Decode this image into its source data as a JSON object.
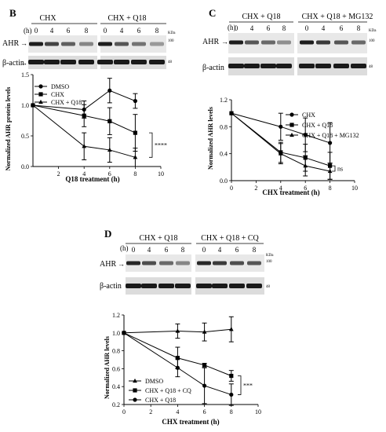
{
  "panels": [
    {
      "id": "B",
      "letter": "B",
      "blot": {
        "groups": [
          "CHX",
          "CHX + Q18"
        ],
        "h_label": "(h)",
        "time_labels": [
          "0",
          "4",
          "6",
          "8"
        ],
        "kda_label": "KDa",
        "markers": [
          "100",
          "48"
        ],
        "bands": [
          "AHR",
          "β-actin"
        ],
        "ahr_intensity": [
          0.9,
          0.7,
          0.55,
          0.35,
          0.9,
          0.6,
          0.45,
          0.25
        ]
      },
      "chart": {
        "ylabel": "Normalized AHR protein levels",
        "xlabel": "Q18 treatment (h)",
        "significance": "****"
      }
    },
    {
      "id": "C",
      "letter": "C",
      "blot": {
        "groups": [
          "CHX + Q18",
          "CHX + Q18 + MG132"
        ],
        "h_label": "(h)",
        "time_labels": [
          "0",
          "4",
          "6",
          "8"
        ],
        "kda_label": "KDa",
        "markers": [
          "100",
          "48"
        ],
        "bands": [
          "AHR",
          "β-actin"
        ],
        "ahr_intensity": [
          0.9,
          0.6,
          0.5,
          0.3,
          0.9,
          0.75,
          0.6,
          0.5
        ]
      },
      "chart": {
        "ylabel": "Normalized AHR levels",
        "xlabel": "CHX treatment (h)",
        "significance": "ns"
      }
    },
    {
      "id": "D",
      "letter": "D",
      "blot": {
        "groups": [
          "CHX + Q18",
          "CHX + Q18 + CQ"
        ],
        "h_label": "(h)",
        "time_labels": [
          "0",
          "4",
          "6",
          "8"
        ],
        "kda_label": "KDa",
        "markers": [
          "100",
          "48"
        ],
        "bands": [
          "AHR",
          "β-actin"
        ],
        "ahr_intensity": [
          0.85,
          0.65,
          0.5,
          0.35,
          0.85,
          0.75,
          0.65,
          0.6
        ]
      },
      "chart": {
        "ylabel": "Normalized AHR levels",
        "xlabel": "CHX treatment (h)",
        "significance": "***"
      }
    }
  ],
  "chart_data": [
    {
      "panel": "B",
      "type": "line",
      "xlabel": "Q18 treatment (h)",
      "ylabel": "Normalized AHR protein levels",
      "xlim": [
        0,
        10
      ],
      "ylim": [
        0,
        1.5
      ],
      "xticks": [
        2,
        4,
        6,
        8,
        10
      ],
      "yticks": [
        0.0,
        0.5,
        1.0,
        1.5
      ],
      "legend_position": "top-left",
      "series": [
        {
          "name": "DMSO",
          "marker": "circle",
          "x": [
            0,
            4,
            6,
            8
          ],
          "y": [
            1.0,
            0.93,
            1.24,
            1.07
          ],
          "err": [
            0,
            0.14,
            0.2,
            0.12
          ]
        },
        {
          "name": "CHX",
          "marker": "square",
          "x": [
            0,
            4,
            6,
            8
          ],
          "y": [
            1.0,
            0.83,
            0.74,
            0.55
          ],
          "err": [
            0,
            0.18,
            0.22,
            0.3
          ]
        },
        {
          "name": "CHX + Q18",
          "marker": "triangle",
          "x": [
            0,
            4,
            6,
            8
          ],
          "y": [
            1.0,
            0.33,
            0.27,
            0.15
          ],
          "err": [
            0,
            0.22,
            0.2,
            0.15
          ]
        }
      ],
      "annotation": "****"
    },
    {
      "panel": "C",
      "type": "line",
      "xlabel": "CHX treatment (h)",
      "ylabel": "Normalized AHR levels",
      "xlim": [
        0,
        10
      ],
      "ylim": [
        0,
        1.2
      ],
      "xticks": [
        0,
        2,
        4,
        6,
        8,
        10
      ],
      "yticks": [
        0.0,
        0.4,
        0.8,
        1.2
      ],
      "legend_position": "top-right",
      "series": [
        {
          "name": "CHX",
          "marker": "circle",
          "x": [
            0,
            4,
            6,
            8
          ],
          "y": [
            1.0,
            0.8,
            0.68,
            0.56
          ],
          "err": [
            0,
            0.2,
            0.25,
            0.3
          ]
        },
        {
          "name": "CHX + Q18",
          "marker": "square",
          "x": [
            0,
            4,
            6,
            8
          ],
          "y": [
            1.0,
            0.42,
            0.34,
            0.22
          ],
          "err": [
            0,
            0.15,
            0.2,
            0.2
          ]
        },
        {
          "name": "CHX + Q18 + MG132",
          "marker": "triangle",
          "x": [
            0,
            4,
            6,
            8
          ],
          "y": [
            1.0,
            0.4,
            0.22,
            0.14
          ],
          "err": [
            0,
            0.15,
            0.15,
            0.12
          ]
        }
      ],
      "annotation": "ns"
    },
    {
      "panel": "D",
      "type": "line",
      "xlabel": "CHX treatment (h)",
      "ylabel": "Normalized AHR levels",
      "xlim": [
        0,
        10
      ],
      "ylim": [
        0.2,
        1.2
      ],
      "xticks": [
        0,
        2,
        4,
        6,
        8,
        10
      ],
      "yticks": [
        0.2,
        0.4,
        0.6,
        0.8,
        1.0,
        1.2
      ],
      "legend_position": "bottom-left",
      "series": [
        {
          "name": "DMSO",
          "marker": "triangle",
          "x": [
            0,
            4,
            6,
            8
          ],
          "y": [
            1.0,
            1.02,
            1.01,
            1.04
          ],
          "err": [
            0,
            0.08,
            0.1,
            0.14
          ]
        },
        {
          "name": "CHX + Q18 + CQ",
          "marker": "square",
          "x": [
            0,
            4,
            6,
            8
          ],
          "y": [
            1.0,
            0.72,
            0.64,
            0.52
          ],
          "err": [
            0,
            0.12,
            0.02,
            0.06
          ]
        },
        {
          "name": "CHX + Q18",
          "marker": "circle",
          "x": [
            0,
            4,
            6,
            8
          ],
          "y": [
            1.0,
            0.61,
            0.41,
            0.31
          ],
          "err": [
            0,
            0.1,
            0.2,
            0.12
          ]
        }
      ],
      "annotation": "***"
    }
  ]
}
